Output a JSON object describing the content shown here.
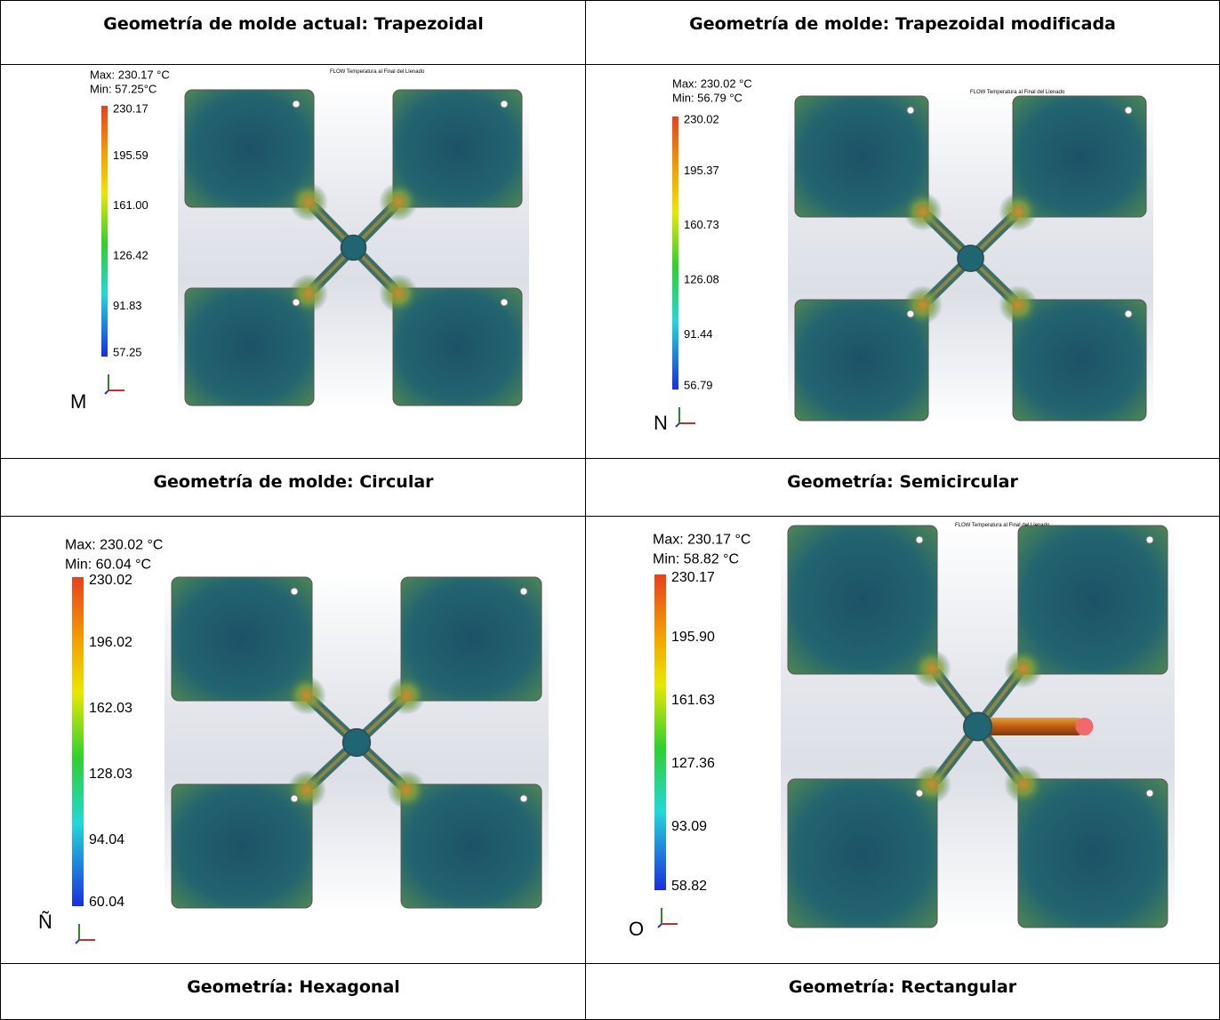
{
  "table": {
    "rows": [
      {
        "cells": [
          {
            "title": "Geometría de molde actual: Trapezoidal"
          },
          {
            "title": "Geometría de molde: Trapezoidal modificada"
          }
        ]
      },
      {
        "cells": [
          {
            "max": "Max: 230.17 °C",
            "min": "Min: 57.25°C",
            "scale": [
              "230.17",
              "195.59",
              "161.00",
              "126.42",
              "91.83",
              "57.25"
            ],
            "label": "M",
            "banner": "FLOW Temperatura al Final del Llenado"
          },
          {
            "max": "Max: 230.02 °C",
            "min": "Min: 56.79 °C",
            "scale": [
              "230.02",
              "195.37",
              "160.73",
              "126.08",
              "91.44",
              "56.79"
            ],
            "label": "N",
            "banner": "FLOW Temperatura al Final del Llenado"
          }
        ]
      },
      {
        "cells": [
          {
            "title": "Geometría de molde: Circular"
          },
          {
            "title": "Geometría: Semicircular"
          }
        ]
      },
      {
        "cells": [
          {
            "max": "Max: 230.02 °C",
            "min": "Min: 60.04 °C",
            "scale": [
              "230.02",
              "196.02",
              "162.03",
              "128.03",
              "94.04",
              "60.04"
            ],
            "label": "Ñ"
          },
          {
            "max": "Max: 230.17 °C",
            "min": "Min: 58.82 °C",
            "scale": [
              "230.17",
              "195.90",
              "161.63",
              "127.36",
              "93.09",
              "58.82"
            ],
            "label": "O",
            "banner": "FLOW Temperatura al Final del Llenado"
          }
        ]
      },
      {
        "cells": [
          {
            "title": "Geometría: Hexagonal"
          },
          {
            "title": "Geometría: Rectangular"
          }
        ]
      }
    ]
  }
}
